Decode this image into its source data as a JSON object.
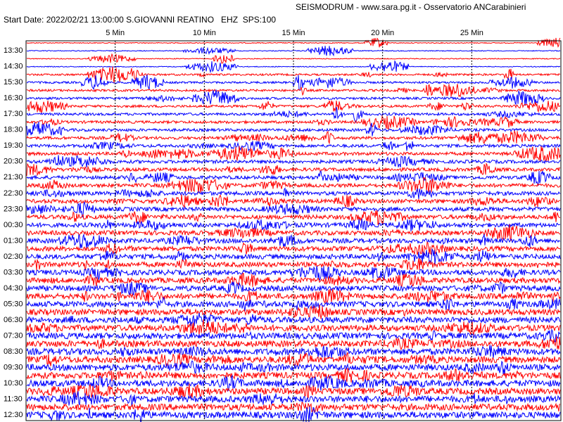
{
  "header": {
    "title": "SEISMODRUM - www.sara.pg.it - Osservatorio ANCarabinieri",
    "info": "Start Date: 2022/02/21 13:00:00 S.GIOVANNI REATINO   EHZ  SPS:100"
  },
  "x_axis": {
    "range": [
      0,
      30
    ],
    "ticks": [
      {
        "value": 5,
        "label": "5 Min"
      },
      {
        "value": 10,
        "label": "10 Min"
      },
      {
        "value": 15,
        "label": "15 Min"
      },
      {
        "value": 20,
        "label": "20 Min"
      },
      {
        "value": 25,
        "label": "25 Min"
      }
    ]
  },
  "y_axis": {
    "labels": [
      "13:30",
      "14:30",
      "15:30",
      "16:30",
      "17:30",
      "18:30",
      "19:30",
      "20:30",
      "21:30",
      "22:30",
      "23:30",
      "00:30",
      "01:30",
      "02:30",
      "03:30",
      "04:30",
      "05:30",
      "06:30",
      "07:30",
      "08:30",
      "09:30",
      "10:30",
      "11:30",
      "12:30"
    ]
  },
  "trace_colors": [
    "#ff0000",
    "#0000ff"
  ]
}
